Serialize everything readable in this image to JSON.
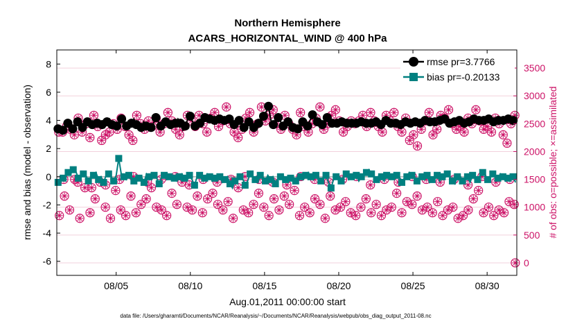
{
  "chart_data": {
    "type": "line",
    "title_line1": "Northern Hemisphere",
    "title_line2": "ACARS_HORIZONTAL_WIND @ 400 hPa",
    "xlabel": "Aug.01,2011 00:00:00 start",
    "ylabel_left": "rmse and bias (model - observation)",
    "ylabel_right": "# of obs: o=possible; ×=assimilated",
    "x_range_days": [
      1,
      32
    ],
    "ylim_left": [
      -7,
      9
    ],
    "ylim_right": [
      -225,
      3825
    ],
    "left_ticks": [
      "-6",
      "-4",
      "-2",
      "0",
      "2",
      "4",
      "6",
      "8"
    ],
    "right_ticks": [
      "0",
      "500",
      "1000",
      "1500",
      "2000",
      "2500",
      "3000",
      "3500"
    ],
    "x_ticks": [
      {
        "day": 5,
        "label": "08/05"
      },
      {
        "day": 10,
        "label": "08/10"
      },
      {
        "day": 15,
        "label": "08/15"
      },
      {
        "day": 20,
        "label": "08/20"
      },
      {
        "day": 25,
        "label": "08/25"
      },
      {
        "day": 30,
        "label": "08/30"
      }
    ],
    "legend": {
      "rmse": "rmse pr=3.7766",
      "bias": "bias pr=-0.20133"
    },
    "footer": "data file: /Users/gharamti/Documents/NCAR/Reanalysis/~/Documents/NCAR/Reanalysis/webpub/obs_diag_output_2011-08.nc",
    "colors": {
      "rmse": "#000000",
      "bias": "#008080",
      "obs": "#cc1166",
      "zero": "#aaaaaa",
      "grid": "#f2d0dc"
    },
    "rmse_values": [
      3.4,
      3.5,
      3.3,
      3.6,
      3.8,
      3.5,
      3.4,
      3.7,
      3.9,
      3.6,
      3.5,
      3.8,
      3.9,
      4.0,
      3.7,
      3.6,
      3.8,
      4.0,
      3.7,
      3.5,
      3.9,
      4.1,
      3.7,
      3.4,
      3.6,
      3.9,
      4.1,
      3.8,
      3.6,
      3.5,
      3.8,
      4.1,
      3.7,
      3.4,
      3.5,
      3.9,
      3.6,
      3.3,
      3.5,
      3.8,
      4.2,
      3.9,
      3.6,
      3.5,
      3.9,
      4.0,
      3.7,
      3.6,
      3.8,
      4.1,
      3.8,
      3.3,
      3.6,
      4.1,
      4.3,
      3.9,
      3.6,
      3.5,
      3.8,
      4.0,
      4.2,
      4.4,
      4.1,
      3.9,
      4.0,
      4.2,
      4.1,
      3.9,
      4.0,
      4.3,
      4.1,
      3.8,
      3.7,
      3.9,
      4.0,
      3.6,
      3.5,
      3.8,
      3.9,
      3.7,
      3.5,
      3.6,
      3.8,
      4.1,
      4.3,
      4.6,
      5.0,
      4.0,
      3.7,
      4.1,
      4.2,
      3.9,
      3.6,
      3.8,
      3.9,
      3.7,
      3.5,
      3.6,
      3.4,
      3.7,
      3.9,
      3.8,
      3.6,
      4.0,
      4.4,
      4.2,
      3.9,
      3.8,
      3.7,
      4.0,
      4.2,
      4.0,
      3.8,
      3.6,
      3.8,
      4.0,
      3.9,
      3.7,
      3.8,
      3.9,
      3.8,
      3.6,
      3.8,
      3.7,
      3.9,
      3.7,
      3.8,
      3.6,
      3.8,
      4.0,
      3.9,
      3.8,
      3.7,
      3.9,
      4.0,
      3.9,
      3.8,
      3.6,
      3.8,
      4.0,
      3.7,
      3.6,
      3.9,
      4.0,
      3.8,
      3.7,
      3.9,
      4.0,
      3.8,
      3.9,
      4.0,
      3.8,
      3.9,
      4.1,
      3.9,
      3.8,
      4.0,
      3.9,
      4.1,
      4.0,
      3.8,
      4.0,
      3.9,
      4.1,
      4.0,
      3.9,
      3.8,
      4.1,
      3.9,
      4.0,
      4.1,
      3.9,
      4.0,
      4.1,
      4.0,
      3.9,
      4.1,
      4.0,
      3.9,
      4.2,
      4.0,
      4.1,
      4.0,
      3.9,
      4.1,
      4.2,
      4.0,
      4.1
    ],
    "bias_values": [
      -0.4,
      -0.2,
      -0.1,
      0.1,
      0.3,
      0.2,
      0.5,
      0.4,
      -0.1,
      0.0,
      0.2,
      0.1,
      -0.3,
      0.0,
      0.1,
      0.3,
      -0.2,
      0.0,
      -0.4,
      0.1,
      0.2,
      0.0,
      -0.3,
      0.1,
      1.3,
      0.2,
      0.0,
      -0.2,
      0.1,
      0.0,
      -0.3,
      0.1,
      -0.1,
      0.0,
      -0.4,
      0.2,
      0.0,
      -0.2,
      0.1,
      -0.1,
      -0.5,
      0.0,
      0.1,
      -0.2,
      0.0,
      0.1,
      -0.1,
      -0.3,
      0.0,
      0.2,
      -0.1,
      -0.3,
      0.1,
      -0.2,
      -0.6,
      0.0,
      0.1,
      -0.2,
      -0.1,
      0.2,
      0.0,
      -0.3,
      -0.1,
      0.1,
      0.0,
      -0.4,
      -0.2,
      0.0,
      -0.5,
      -0.8,
      -0.3,
      -0.2,
      0.0,
      -0.1,
      -0.6,
      -0.3,
      0.2,
      0.0,
      -0.2,
      -0.4,
      0.1,
      0.0,
      -0.3,
      0.1,
      -0.2,
      0.0,
      -0.5,
      -0.1,
      0.0,
      0.1,
      -0.2,
      -0.4,
      -0.1,
      0.0,
      -0.3,
      0.1,
      0.0,
      -0.2,
      0.1,
      0.3,
      0.0,
      -0.2,
      0.1,
      -0.2,
      -0.3,
      0.0,
      0.1,
      -0.4,
      -0.8,
      -0.2,
      0.0,
      0.1,
      -0.3,
      0.0,
      0.2,
      -0.2,
      0.0,
      -0.1,
      0.1,
      -0.3,
      0.0,
      0.1,
      0.3,
      0.5,
      0.2,
      0.0,
      -0.2,
      0.1,
      0.0,
      -0.3,
      0.1,
      0.2,
      0.0,
      -0.2,
      0.1,
      0.0,
      -0.4,
      -0.1,
      0.0,
      0.3,
      0.1,
      0.0,
      -0.3,
      -0.1,
      0.0,
      -0.2,
      0.1,
      -0.4,
      -0.2,
      0.0,
      0.1,
      -0.3,
      0.0,
      -0.1,
      0.2,
      0.0,
      -0.3,
      -0.5,
      0.0,
      0.1,
      -0.3,
      -0.1,
      0.0,
      -0.4,
      0.1,
      0.0,
      -0.2,
      0.1,
      0.3,
      0.1,
      -0.2,
      0.0,
      0.2,
      0.1,
      -0.1,
      0.2,
      0.0,
      -0.3,
      -0.1,
      0.1,
      0.0,
      -0.4
    ],
    "obs_possible": [
      2350,
      2350,
      2450,
      2400,
      2300,
      2600,
      2350,
      2500,
      2250,
      2650,
      2450,
      2200,
      2300,
      2350,
      2500,
      2400,
      2600,
      2450,
      2300,
      2200,
      2650,
      2500,
      2400,
      2550,
      2450,
      2600,
      2350,
      2500,
      2700,
      2550,
      2400,
      2300,
      2450,
      2650,
      2550,
      2450,
      2650,
      2500,
      2350,
      2600,
      2700,
      2450,
      2550,
      2800,
      2500,
      2350,
      2250,
      2400,
      2600,
      2700,
      2350,
      2500,
      2800,
      2550,
      2650,
      2750,
      2500,
      2400,
      2650,
      2500,
      2400,
      2300,
      2700,
      2450,
      2350,
      2500,
      2600,
      2800,
      2400,
      2500,
      2650,
      2750,
      2550,
      2350,
      2450,
      2550,
      2500,
      2550,
      2650,
      2450,
      2700,
      2550,
      2450,
      2350,
      2650,
      2550,
      2700,
      2450,
      2350,
      2600,
      2200,
      2300,
      2100,
      2400,
      2550,
      2700,
      2300,
      2400,
      2650,
      2600,
      2750,
      2500,
      2400,
      2450,
      2350,
      2600,
      2500,
      2750,
      2550,
      2400,
      2450,
      2350,
      2600,
      2500,
      2300,
      2150,
      2500,
      2650
    ],
    "obs_possible_low": [
      850,
      1200,
      950,
      1500,
      800,
      1350,
      900,
      1150,
      1450,
      1000,
      800,
      1300,
      950,
      850,
      1200,
      900,
      1050,
      1150,
      1350,
      1000,
      950,
      850,
      1250,
      1050,
      1450,
      1000,
      950,
      1200,
      900,
      1150,
      1250,
      1050,
      950,
      1100,
      800,
      1350,
      950,
      900,
      1050,
      1250,
      1000,
      850,
      1150,
      950,
      1200,
      1050,
      1300,
      850,
      1000,
      900,
      1150,
      1050,
      800,
      1200,
      950,
      1000,
      1100,
      900,
      850,
      1000,
      1150,
      900,
      1050,
      850,
      950,
      1000,
      1250,
      900,
      1100,
      1050,
      1200,
      950,
      1000,
      900,
      1100,
      850,
      950,
      1000,
      800,
      850,
      950,
      1150,
      1300,
      900,
      1000,
      850,
      950,
      900,
      1100,
      1050
    ],
    "obs_low_extra": [
      1500,
      1450,
      1350,
      1400,
      1500,
      1550,
      1450,
      1500,
      1550,
      1400,
      1500,
      1450,
      1500,
      1550,
      1500,
      1450,
      1400,
      1550,
      1500,
      1450,
      1500,
      1550,
      1400,
      1500,
      1450,
      1550,
      1500,
      1450,
      1500,
      1400,
      1550,
      1450,
      1500
    ]
  }
}
